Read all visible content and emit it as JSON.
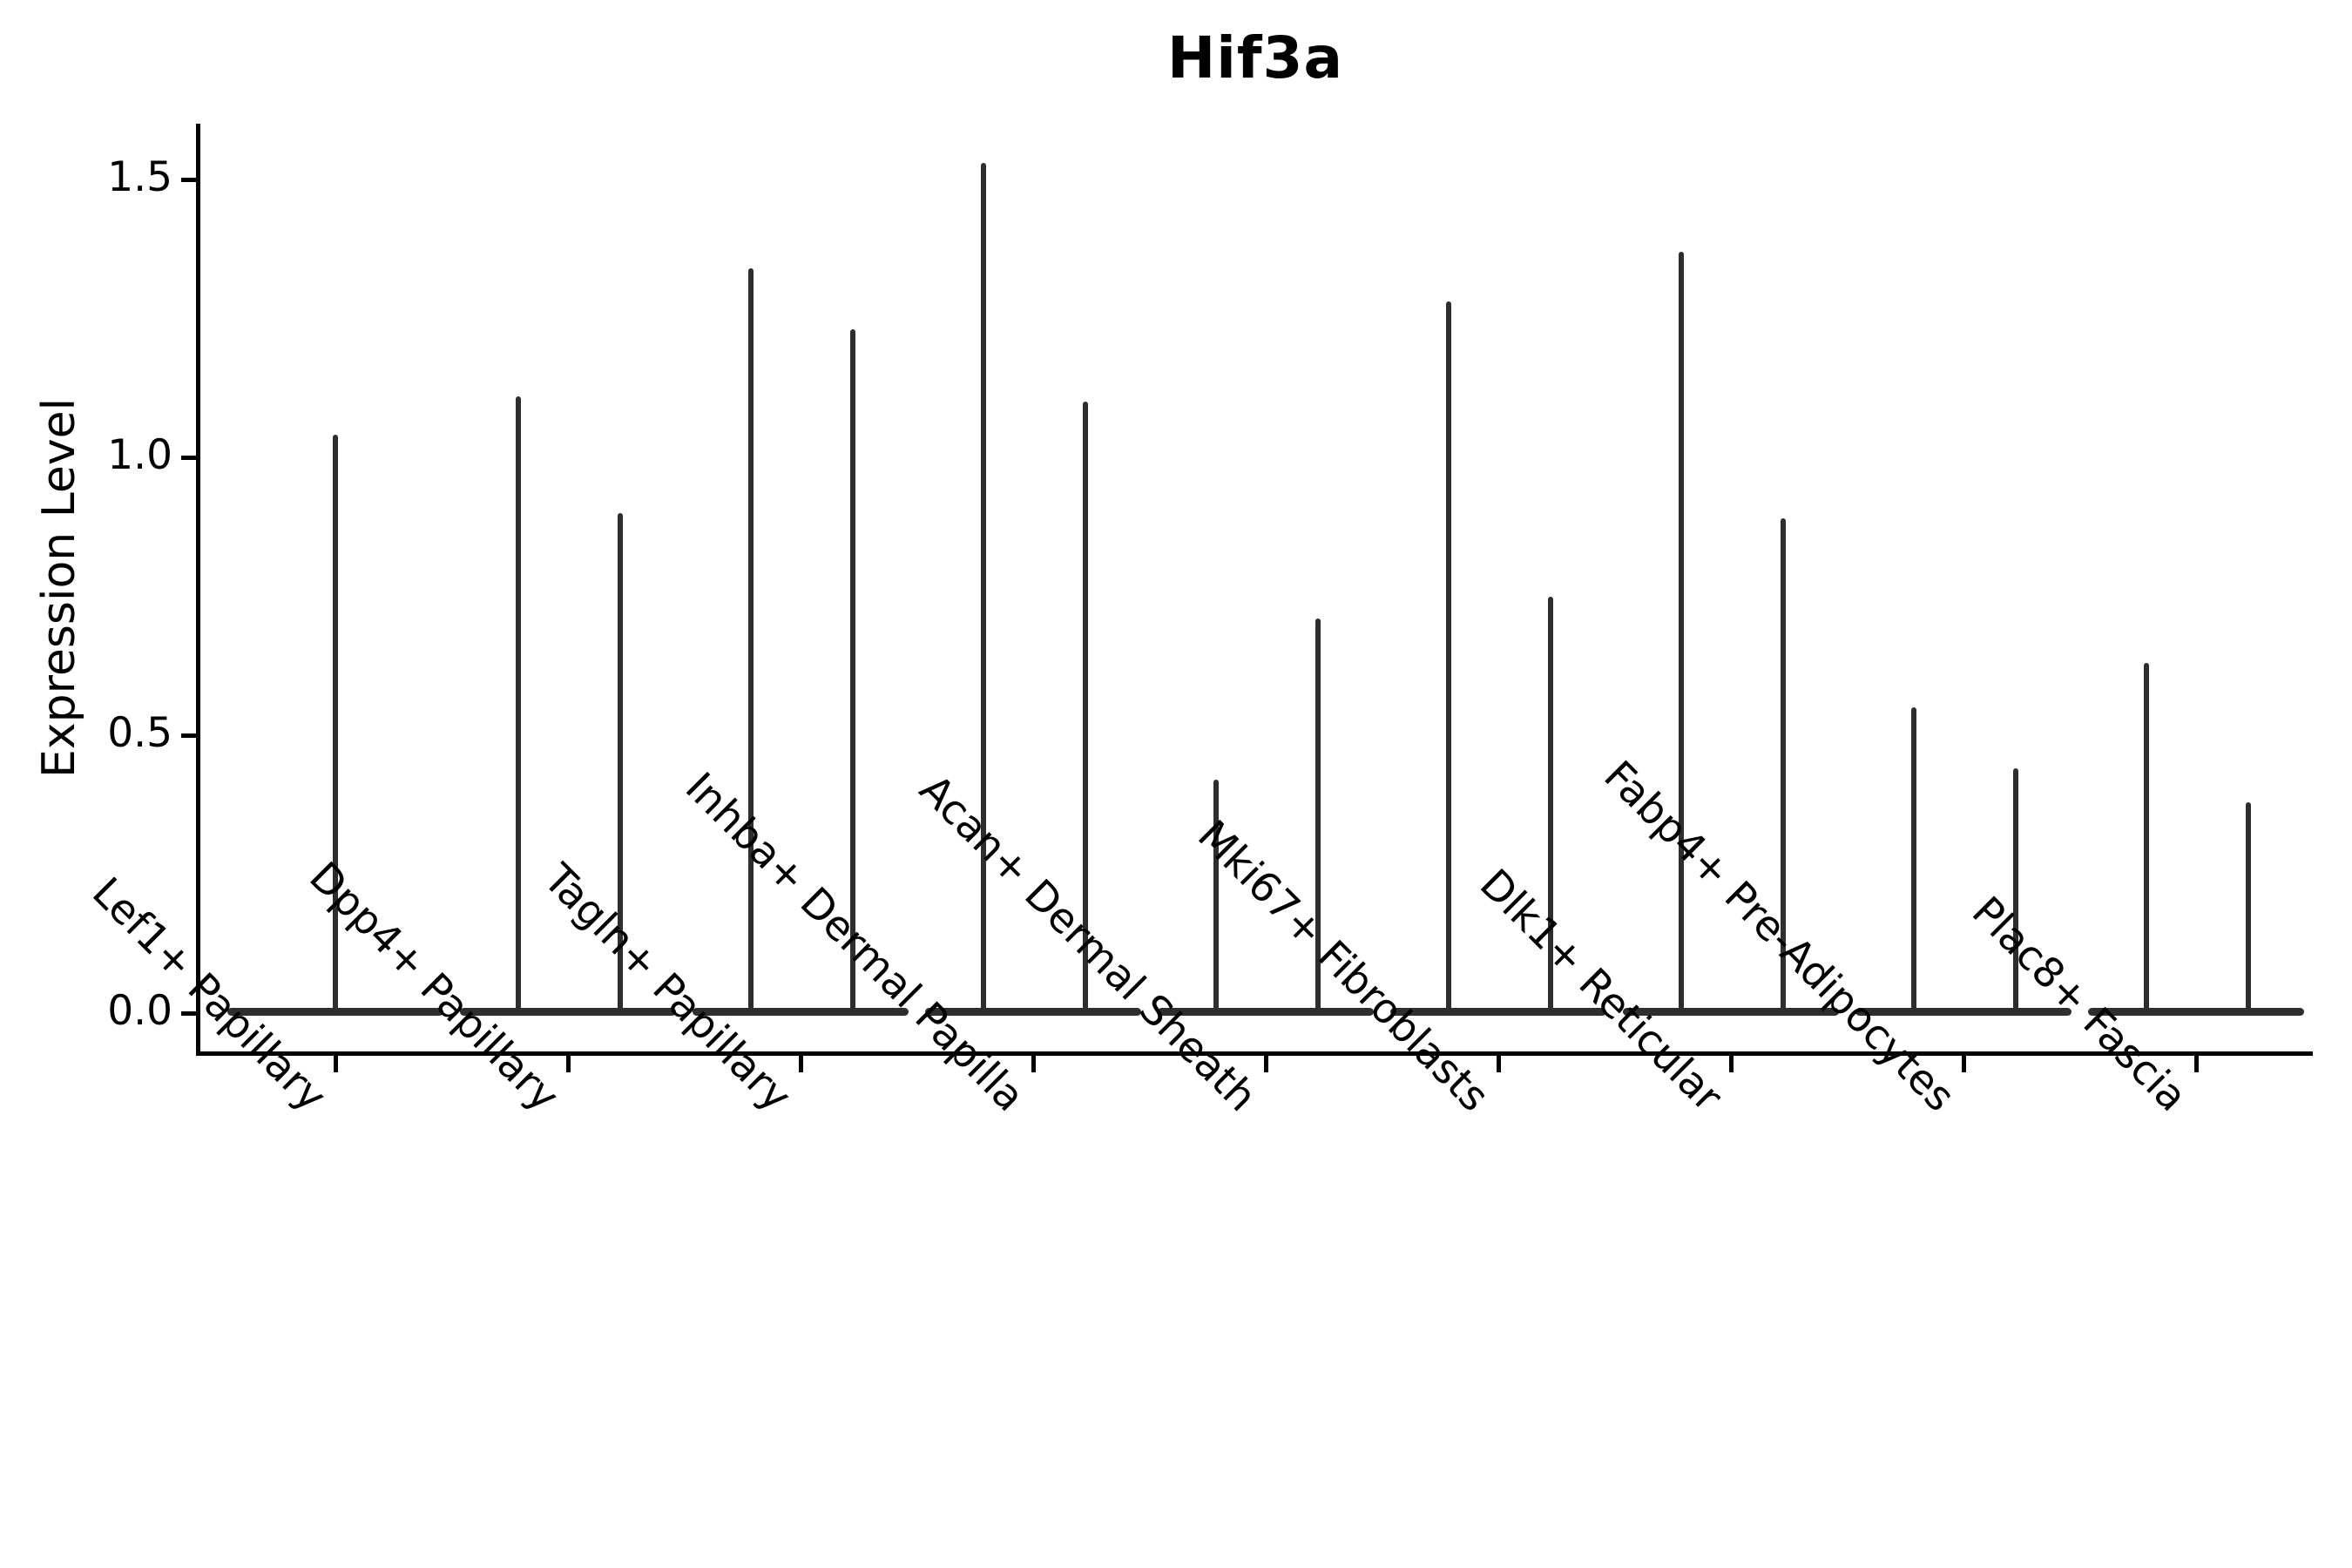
{
  "chart_data": {
    "type": "violin",
    "title": "Hif3a",
    "ylabel": "Expression Level",
    "xlabel": "",
    "ylim": [
      0,
      1.6
    ],
    "yticks": [
      0.0,
      0.5,
      1.0,
      1.5
    ],
    "ytick_labels": [
      "0.0",
      "0.5",
      "1.0",
      "1.5"
    ],
    "grid": false,
    "legend_position": "none",
    "violin_color": "#2e2e2e",
    "axis_color": "#000000",
    "description": "Violin plot of Hif3a expression; each violin is a flat density mass at 0 with a thin spike up to its maximum expression value",
    "categories": [
      {
        "label": "Lef1+ Papillary",
        "violin_maxima": [
          1.04
        ]
      },
      {
        "label": "Dpp4+ Papillary",
        "violin_maxima": [
          1.11,
          0.9
        ]
      },
      {
        "label": "Tagln+ Papillary",
        "violin_maxima": [
          1.34,
          1.23
        ]
      },
      {
        "label": "Inhba+ Dermal Papilla",
        "violin_maxima": [
          1.53,
          1.1
        ]
      },
      {
        "label": "Acan+ Dermal Sheath",
        "violin_maxima": [
          0.42,
          0.71
        ]
      },
      {
        "label": "Mki67+ Fibroblasts",
        "violin_maxima": [
          1.28,
          0.75
        ]
      },
      {
        "label": "Dlk1+ Reticular",
        "violin_maxima": [
          1.37,
          0.89
        ]
      },
      {
        "label": "Fabp4+ Pre-Adipocytes",
        "violin_maxima": [
          0.55,
          0.44
        ]
      },
      {
        "label": "Plac8+ Fascia",
        "violin_maxima": [
          0.63,
          0.38
        ]
      }
    ]
  }
}
